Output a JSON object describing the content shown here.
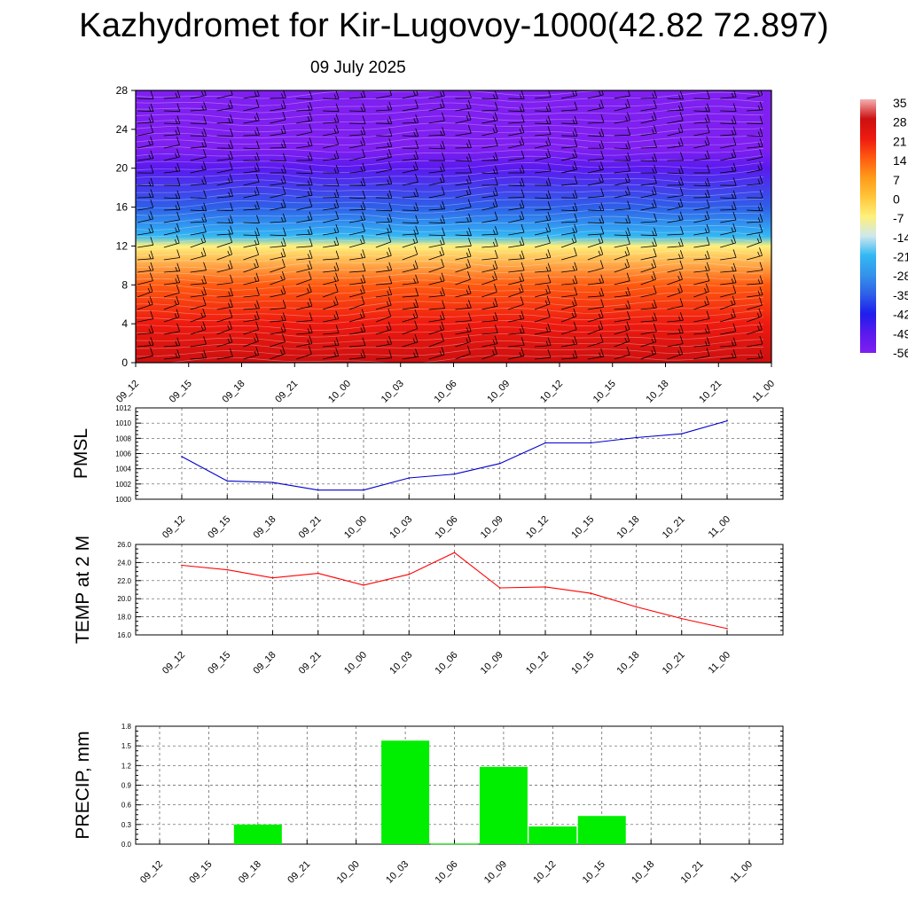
{
  "header": {
    "title": "Kazhydromet for Kir-Lugovoy-1000(42.82 72.897)",
    "date": "09 July 2025"
  },
  "time_labels": [
    "09_12",
    "09_15",
    "09_18",
    "09_21",
    "10_00",
    "10_03",
    "10_06",
    "10_09",
    "10_12",
    "10_15",
    "10_18",
    "10_21",
    "11_00"
  ],
  "colorbar": {
    "labels": [
      "35",
      "28",
      "21",
      "14",
      "7",
      "0",
      "-7",
      "-14",
      "-21",
      "-28",
      "-35",
      "-42",
      "-49",
      "-56"
    ]
  },
  "chart_data": [
    {
      "type": "heatmap",
      "title": "",
      "xlabel": "",
      "ylabel": "",
      "x": [
        "09_12",
        "09_15",
        "09_18",
        "09_21",
        "10_00",
        "10_03",
        "10_06",
        "10_09",
        "10_12",
        "10_15",
        "10_18",
        "10_21",
        "11_00"
      ],
      "yticks": [
        0,
        4,
        8,
        12,
        16,
        20,
        24,
        28
      ],
      "ylim": [
        0,
        28
      ],
      "temperature_profile": [
        {
          "level": 0,
          "value": 30
        },
        {
          "level": 4,
          "value": 25
        },
        {
          "level": 8,
          "value": 16
        },
        {
          "level": 12,
          "value": 0
        },
        {
          "level": 13,
          "value": -14
        },
        {
          "level": 16,
          "value": -28
        },
        {
          "level": 20,
          "value": -42
        },
        {
          "level": 22,
          "value": -50
        },
        {
          "level": 28,
          "value": -56
        }
      ],
      "overlay": "wind barbs"
    },
    {
      "type": "line",
      "ylabel": "PMSL",
      "x": [
        "09_12",
        "09_15",
        "09_18",
        "09_21",
        "10_00",
        "10_03",
        "10_06",
        "10_09",
        "10_12",
        "10_15",
        "10_18",
        "10_21",
        "11_00"
      ],
      "values": [
        1005.6,
        1002.4,
        1002.2,
        1001.2,
        1001.2,
        1002.8,
        1003.3,
        1004.7,
        1007.4,
        1007.4,
        1008.1,
        1008.6,
        1010.3
      ],
      "yticks": [
        "1000",
        "1002",
        "1004",
        "1006",
        "1008",
        "1010",
        "1012"
      ],
      "ylim": [
        1000,
        1012
      ],
      "color": "#0000cc"
    },
    {
      "type": "line",
      "ylabel": "TEMP at 2 M",
      "x": [
        "09_12",
        "09_15",
        "09_18",
        "09_21",
        "10_00",
        "10_03",
        "10_06",
        "10_09",
        "10_12",
        "10_15",
        "10_18",
        "10_21",
        "11_00"
      ],
      "values": [
        23.7,
        23.2,
        22.3,
        22.8,
        21.5,
        22.7,
        25.1,
        21.2,
        21.3,
        20.6,
        19.1,
        17.8,
        16.7
      ],
      "yticks": [
        "16.0",
        "18.0",
        "20.0",
        "22.0",
        "24.0",
        "26.0"
      ],
      "ylim": [
        16,
        26
      ],
      "color": "#ff0000"
    },
    {
      "type": "bar",
      "ylabel": "PRECIP, mm",
      "categories": [
        "09_12",
        "09_15",
        "09_18",
        "09_21",
        "10_00",
        "10_03",
        "10_06",
        "10_09",
        "10_12",
        "10_15",
        "10_18",
        "10_21",
        "11_00"
      ],
      "values": [
        0,
        0,
        0.3,
        0,
        0,
        1.58,
        0.01,
        1.18,
        0.27,
        0.43,
        0,
        0,
        0
      ],
      "yticks": [
        "0.0",
        "0.3",
        "0.6",
        "0.9",
        "1.2",
        "1.5",
        "1.8"
      ],
      "ylim": [
        0,
        1.8
      ],
      "color": "#00ee00"
    }
  ]
}
